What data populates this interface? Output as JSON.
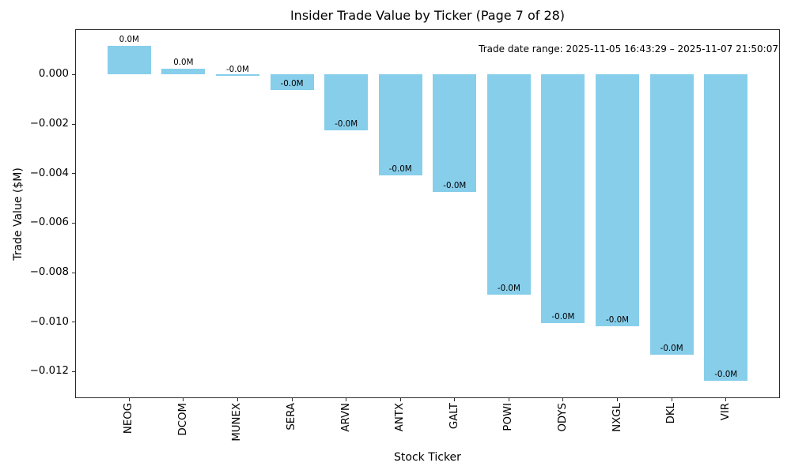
{
  "chart_data": {
    "type": "bar",
    "title": "Insider Trade Value by Ticker (Page 7 of 28)",
    "xlabel": "Stock Ticker",
    "ylabel": "Trade Value ($M)",
    "annotation": "Trade date range: 2025-11-05 16:43:29 – 2025-11-07 21:50:07",
    "categories": [
      "NEOG",
      "DCOM",
      "MUNEX",
      "SERA",
      "ARVN",
      "ANTX",
      "GALT",
      "POWI",
      "ODYS",
      "NXGL",
      "DKL",
      "VIR"
    ],
    "values": [
      0.00115,
      0.00024,
      -2e-05,
      -0.00064,
      -0.00226,
      -0.00406,
      -0.00475,
      -0.00888,
      -0.01005,
      -0.01018,
      -0.01131,
      -0.01236
    ],
    "bar_labels": [
      "0.0M",
      "0.0M",
      "-0.0M",
      "-0.0M",
      "-0.0M",
      "-0.0M",
      "-0.0M",
      "-0.0M",
      "-0.0M",
      "-0.0M",
      "-0.0M",
      "-0.0M"
    ],
    "bar_color": "#87CEEB",
    "ylim": [
      -0.01307,
      0.00183
    ],
    "yticks": [
      0.0,
      -0.002,
      -0.004,
      -0.006,
      -0.008,
      -0.01,
      -0.012
    ],
    "ytick_labels": [
      "0.000",
      "−0.002",
      "−0.004",
      "−0.006",
      "−0.008",
      "−0.010",
      "−0.012"
    ],
    "grid": false,
    "legend": "none"
  }
}
